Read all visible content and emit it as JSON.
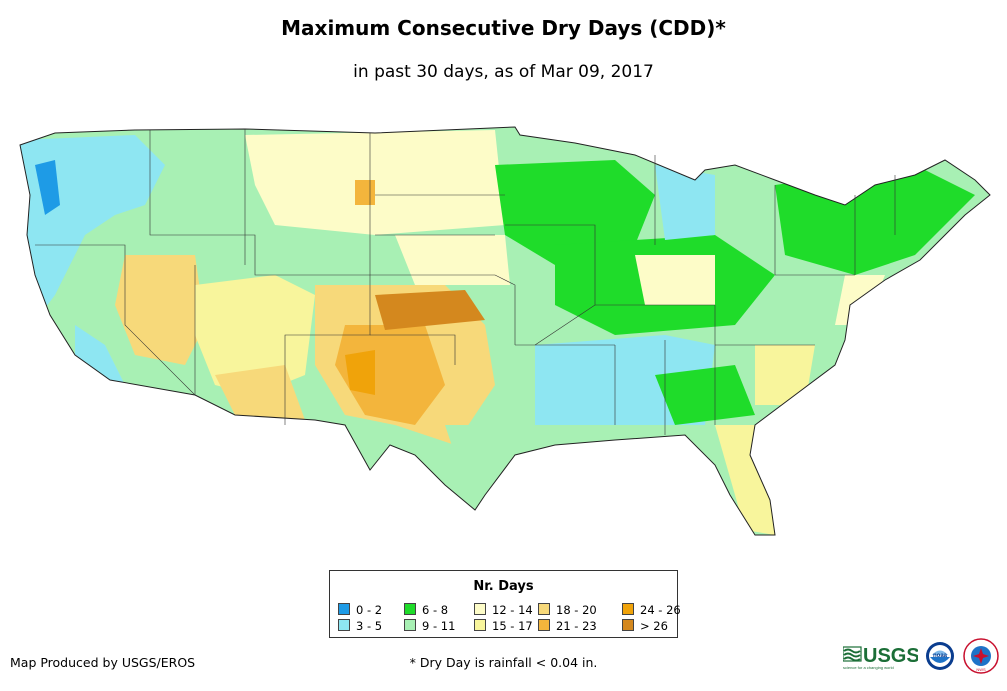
{
  "header": {
    "title": "Maximum Consecutive Dry Days (CDD)*",
    "subtitle": "in past 30 days, as of Mar 09, 2017"
  },
  "legend": {
    "title": "Nr. Days",
    "items": [
      {
        "label": "0 - 2",
        "color": "#1e9be6"
      },
      {
        "label": "3 - 5",
        "color": "#8ee6f2"
      },
      {
        "label": "6 - 8",
        "color": "#1fdc2a"
      },
      {
        "label": "9 - 11",
        "color": "#a8f0b4"
      },
      {
        "label": "12 - 14",
        "color": "#fdfcc8"
      },
      {
        "label": "15 - 17",
        "color": "#f8f59c"
      },
      {
        "label": "18 - 20",
        "color": "#f7d97a"
      },
      {
        "label": "21 - 23",
        "color": "#f3b53c"
      },
      {
        "label": "24 - 26",
        "color": "#f0a30a"
      },
      {
        "label": "> 26",
        "color": "#d4881e"
      }
    ]
  },
  "footer": {
    "producer": "Map Produced by USGS/EROS",
    "footnote": "* Dry Day is rainfall < 0.04 in."
  },
  "logos": {
    "usgs": "USGS",
    "usgs_tagline": "science for a changing world",
    "noaa": "noaa",
    "nws": "NWS"
  }
}
